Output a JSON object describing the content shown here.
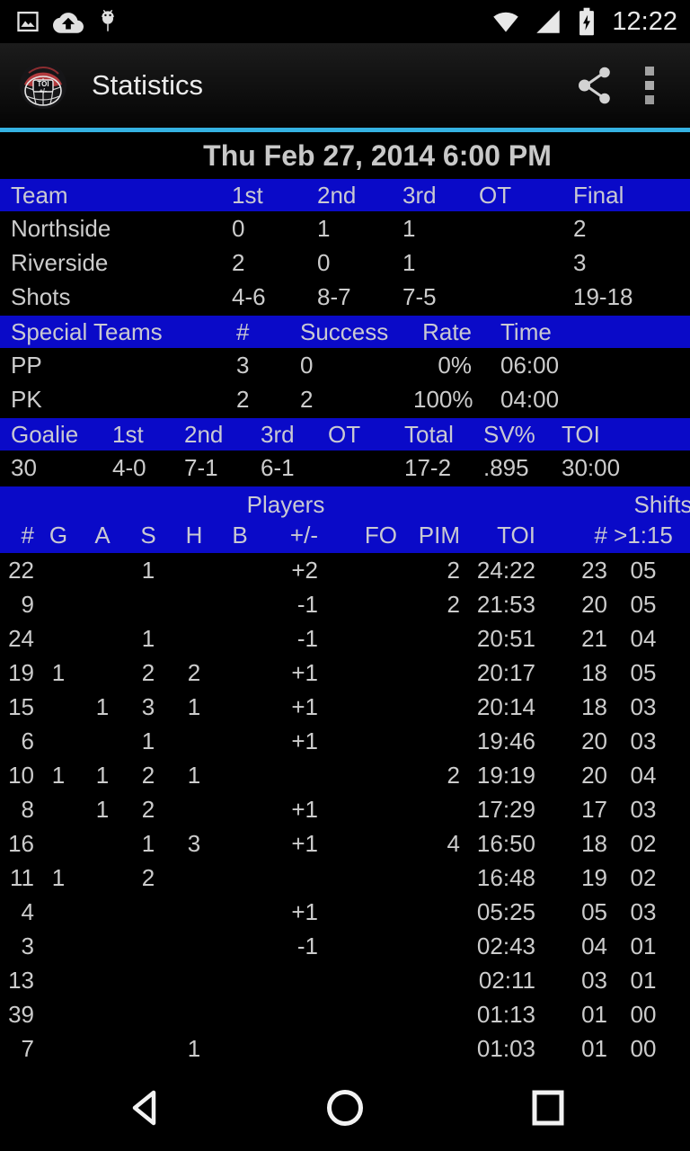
{
  "status_bar": {
    "time": "12:22",
    "icons": [
      "picture-icon",
      "cloud-upload-icon",
      "adb-icon",
      "wifi-icon",
      "cell-signal-icon",
      "battery-charging-icon"
    ]
  },
  "app_bar": {
    "title": "Statistics",
    "app_icon": "goalie-mask-icon",
    "actions": [
      "share-icon",
      "overflow-menu-icon"
    ]
  },
  "colors": {
    "table_header_blue": "#0a0ac8",
    "accent_line_cyan": "#35b2e2",
    "text_gray": "#cccccc",
    "background": "#000000"
  },
  "date_header": "Thu Feb 27, 2014 6:00 PM",
  "score_table": {
    "headers": [
      "Team",
      "1st",
      "2nd",
      "3rd",
      "OT",
      "Final"
    ],
    "rows": [
      [
        "Northside",
        "0",
        "1",
        "1",
        "",
        "2"
      ],
      [
        "Riverside",
        "2",
        "0",
        "1",
        "",
        "3"
      ],
      [
        "Shots",
        "4-6",
        "8-7",
        "7-5",
        "",
        "19-18"
      ]
    ]
  },
  "special_teams_table": {
    "headers": [
      "Special Teams",
      "#",
      "Success",
      "Rate",
      "Time"
    ],
    "rows": [
      [
        "PP",
        "3",
        "0",
        "0%",
        "06:00"
      ],
      [
        "PK",
        "2",
        "2",
        "100%",
        "04:00"
      ]
    ]
  },
  "goalie_table": {
    "headers": [
      "Goalie",
      "1st",
      "2nd",
      "3rd",
      "OT",
      "Total",
      "SV%",
      "TOI"
    ],
    "rows": [
      [
        "30",
        "4-0",
        "7-1",
        "6-1",
        "",
        "17-2",
        ".895",
        "30:00"
      ]
    ]
  },
  "players_table": {
    "group_headers": {
      "players": "Players",
      "shifts": "Shifts"
    },
    "headers": [
      "#",
      "G",
      "A",
      "S",
      "H",
      "B",
      "+/-",
      "FO",
      "PIM",
      "TOI",
      "#",
      ">1:15"
    ],
    "rows": [
      [
        "22",
        "",
        "",
        "1",
        "",
        "",
        "+2",
        "",
        "2",
        "24:22",
        "23",
        "05"
      ],
      [
        "9",
        "",
        "",
        "",
        "",
        "",
        "-1",
        "",
        "2",
        "21:53",
        "20",
        "05"
      ],
      [
        "24",
        "",
        "",
        "1",
        "",
        "",
        "-1",
        "",
        "",
        "20:51",
        "21",
        "04"
      ],
      [
        "19",
        "1",
        "",
        "2",
        "2",
        "",
        "+1",
        "",
        "",
        "20:17",
        "18",
        "05"
      ],
      [
        "15",
        "",
        "1",
        "3",
        "1",
        "",
        "+1",
        "",
        "",
        "20:14",
        "18",
        "03"
      ],
      [
        "6",
        "",
        "",
        "1",
        "",
        "",
        "+1",
        "",
        "",
        "19:46",
        "20",
        "03"
      ],
      [
        "10",
        "1",
        "1",
        "2",
        "1",
        "",
        "",
        "",
        "2",
        "19:19",
        "20",
        "04"
      ],
      [
        "8",
        "",
        "1",
        "2",
        "",
        "",
        "+1",
        "",
        "",
        "17:29",
        "17",
        "03"
      ],
      [
        "16",
        "",
        "",
        "1",
        "3",
        "",
        "+1",
        "",
        "4",
        "16:50",
        "18",
        "02"
      ],
      [
        "11",
        "1",
        "",
        "2",
        "",
        "",
        "",
        "",
        "",
        "16:48",
        "19",
        "02"
      ],
      [
        "4",
        "",
        "",
        "",
        "",
        "",
        "+1",
        "",
        "",
        "05:25",
        "05",
        "03"
      ],
      [
        "3",
        "",
        "",
        "",
        "",
        "",
        "-1",
        "",
        "",
        "02:43",
        "04",
        "01"
      ],
      [
        "13",
        "",
        "",
        "",
        "",
        "",
        "",
        "",
        "",
        "02:11",
        "03",
        "01"
      ],
      [
        "39",
        "",
        "",
        "",
        "",
        "",
        "",
        "",
        "",
        "01:13",
        "01",
        "00"
      ],
      [
        "7",
        "",
        "",
        "",
        "1",
        "",
        "",
        "",
        "",
        "01:03",
        "01",
        "00"
      ]
    ]
  },
  "nav_bar": {
    "buttons": [
      "back",
      "home",
      "recents"
    ]
  }
}
